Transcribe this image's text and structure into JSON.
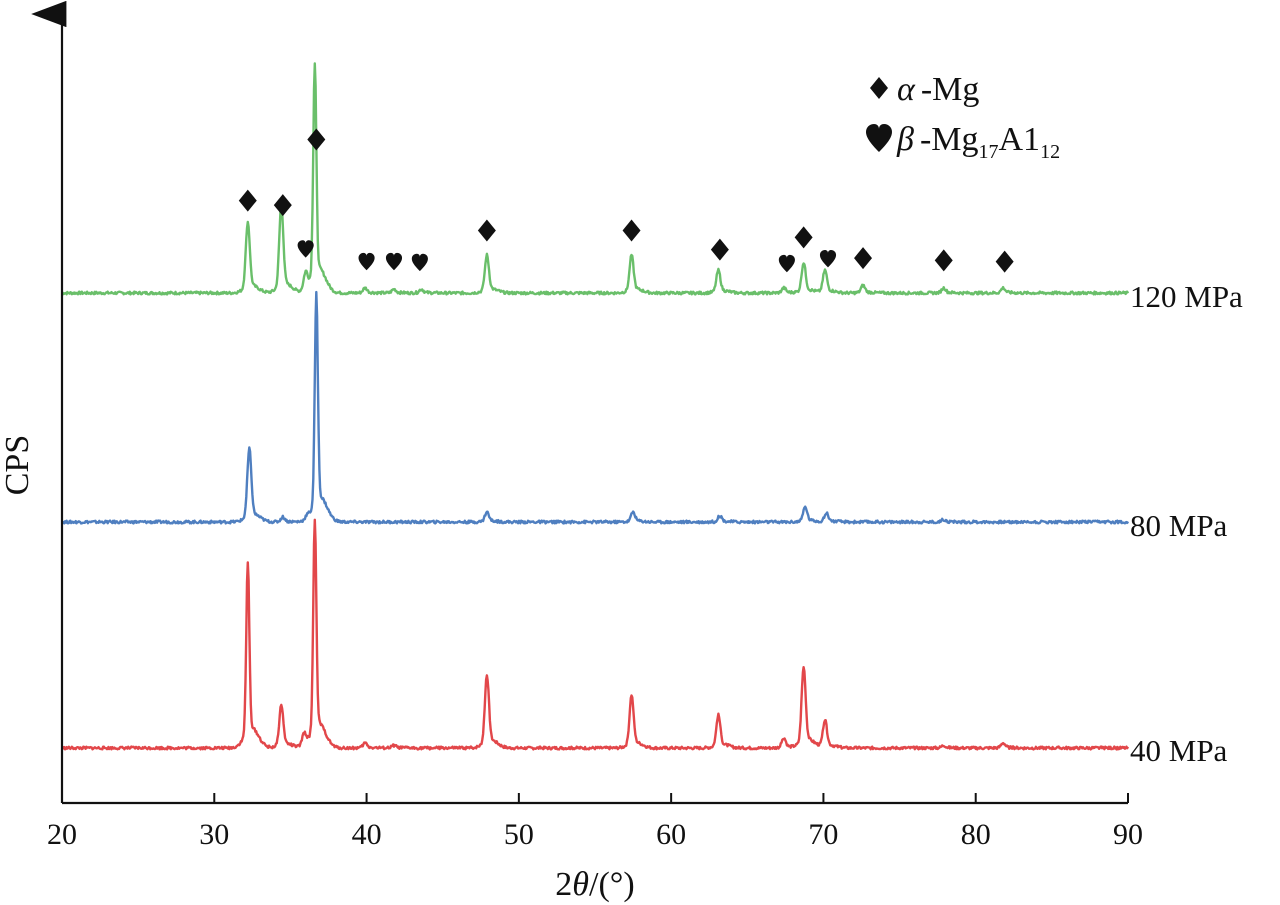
{
  "chart_data": {
    "type": "line",
    "title": "",
    "xlabel_prefix": "2",
    "xlabel_theta": "θ",
    "xlabel_suffix": "/(°)",
    "ylabel": "CPS",
    "xlim": [
      20,
      90
    ],
    "xticks": [
      20,
      30,
      40,
      50,
      60,
      70,
      80,
      90
    ],
    "grid": false,
    "legend_position": "top-right",
    "legend": [
      {
        "symbol": "diamond",
        "greek": "α",
        "text": "-Mg",
        "sub1": "",
        "mid": "",
        "sub2": ""
      },
      {
        "symbol": "heart",
        "greek": "β",
        "text": "-Mg",
        "sub1": "17",
        "mid": "A1",
        "sub2": "12"
      }
    ],
    "series": [
      {
        "name": "120 MPa",
        "color": "#6abf6a",
        "peaks": [
          {
            "x": 32.2,
            "h": 0.28
          },
          {
            "x": 34.4,
            "h": 0.35
          },
          {
            "x": 36.0,
            "h": 0.07
          },
          {
            "x": 36.6,
            "h": 0.9
          },
          {
            "x": 39.9,
            "h": 0.02
          },
          {
            "x": 41.8,
            "h": 0.015
          },
          {
            "x": 43.6,
            "h": 0.015
          },
          {
            "x": 47.9,
            "h": 0.15
          },
          {
            "x": 57.4,
            "h": 0.15
          },
          {
            "x": 63.1,
            "h": 0.09
          },
          {
            "x": 67.4,
            "h": 0.02
          },
          {
            "x": 68.7,
            "h": 0.12
          },
          {
            "x": 70.1,
            "h": 0.09
          },
          {
            "x": 72.6,
            "h": 0.03
          },
          {
            "x": 77.9,
            "h": 0.02
          },
          {
            "x": 81.8,
            "h": 0.02
          }
        ]
      },
      {
        "name": "80 MPa",
        "color": "#4f7fc0",
        "peaks": [
          {
            "x": 32.3,
            "h": 0.29
          },
          {
            "x": 34.5,
            "h": 0.02
          },
          {
            "x": 36.1,
            "h": 0.015
          },
          {
            "x": 36.7,
            "h": 0.9
          },
          {
            "x": 47.9,
            "h": 0.04
          },
          {
            "x": 57.5,
            "h": 0.04
          },
          {
            "x": 63.2,
            "h": 0.025
          },
          {
            "x": 68.8,
            "h": 0.06
          },
          {
            "x": 70.2,
            "h": 0.035
          },
          {
            "x": 77.9,
            "h": 0.01
          }
        ]
      },
      {
        "name": "40 MPa",
        "color": "#e2474a",
        "peaks": [
          {
            "x": 32.2,
            "h": 0.73
          },
          {
            "x": 34.4,
            "h": 0.17
          },
          {
            "x": 35.9,
            "h": 0.05
          },
          {
            "x": 36.6,
            "h": 0.9
          },
          {
            "x": 39.9,
            "h": 0.02
          },
          {
            "x": 41.8,
            "h": 0.01
          },
          {
            "x": 47.9,
            "h": 0.29
          },
          {
            "x": 57.4,
            "h": 0.21
          },
          {
            "x": 63.1,
            "h": 0.13
          },
          {
            "x": 67.4,
            "h": 0.04
          },
          {
            "x": 68.7,
            "h": 0.32
          },
          {
            "x": 70.1,
            "h": 0.11
          },
          {
            "x": 77.9,
            "h": 0.01
          },
          {
            "x": 81.8,
            "h": 0.02
          }
        ]
      }
    ],
    "markers": [
      {
        "symbol": "diamond",
        "x": 32.2
      },
      {
        "symbol": "diamond",
        "x": 34.5
      },
      {
        "symbol": "heart",
        "x": 36.0
      },
      {
        "symbol": "diamond",
        "x": 36.7
      },
      {
        "symbol": "heart",
        "x": 40.0
      },
      {
        "symbol": "heart",
        "x": 41.8
      },
      {
        "symbol": "heart",
        "x": 43.5
      },
      {
        "symbol": "diamond",
        "x": 47.9
      },
      {
        "symbol": "diamond",
        "x": 57.4
      },
      {
        "symbol": "diamond",
        "x": 63.2
      },
      {
        "symbol": "heart",
        "x": 67.6
      },
      {
        "symbol": "diamond",
        "x": 68.7
      },
      {
        "symbol": "heart",
        "x": 70.3
      },
      {
        "symbol": "diamond",
        "x": 72.6
      },
      {
        "symbol": "diamond",
        "x": 77.9
      },
      {
        "symbol": "diamond",
        "x": 81.9
      }
    ]
  }
}
